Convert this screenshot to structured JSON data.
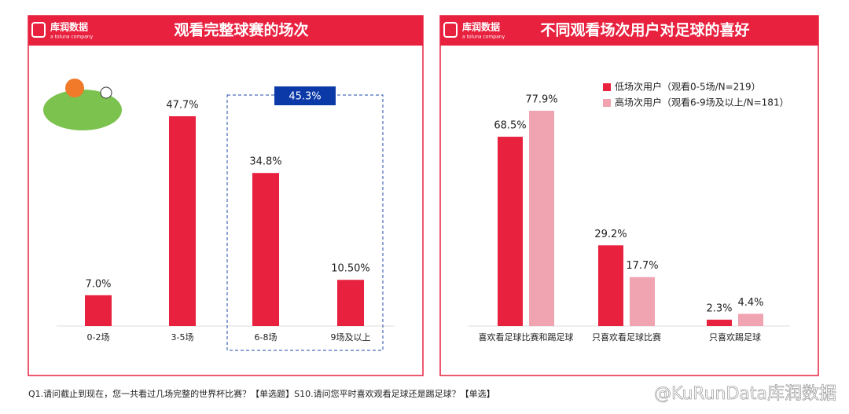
{
  "brand": {
    "name": "库润数据",
    "tagline": "a toluna company"
  },
  "chart_data": [
    {
      "type": "bar",
      "title": "观看完整球赛的场次",
      "categories": [
        "0-2场",
        "3-5场",
        "6-8场",
        "9场及以上"
      ],
      "values": [
        7.0,
        47.7,
        34.8,
        10.5
      ],
      "value_labels": [
        "7.0%",
        "47.7%",
        "34.8%",
        "10.50%"
      ],
      "color": "#e8213f",
      "annotation": "45.3%"
    },
    {
      "type": "bar",
      "title": "不同观看场次用户对足球的喜好",
      "categories": [
        "喜欢看足球比赛和踢足球",
        "只喜欢看足球比赛",
        "只喜欢踢足球"
      ],
      "series": [
        {
          "name": "低场次用户（观看0-5场/N=219）",
          "color": "#e8213f",
          "values": [
            68.5,
            29.2,
            2.3
          ],
          "value_labels": [
            "68.5%",
            "29.2%",
            "2.3%"
          ]
        },
        {
          "name": "高场次用户（观看6-9场及以上/N=181）",
          "color": "#f0a3b0",
          "values": [
            77.9,
            17.7,
            4.4
          ],
          "value_labels": [
            "77.9%",
            "17.7%",
            "4.4%"
          ]
        }
      ],
      "legend": "top-right"
    }
  ],
  "footer": "Q1.请问截止到现在，您一共看过几场完整的世界杯比赛？【单选题】S10.请问您平时喜欢观看足球还是踢足球？【单选】",
  "watermark": "@KuRunData库润数据"
}
